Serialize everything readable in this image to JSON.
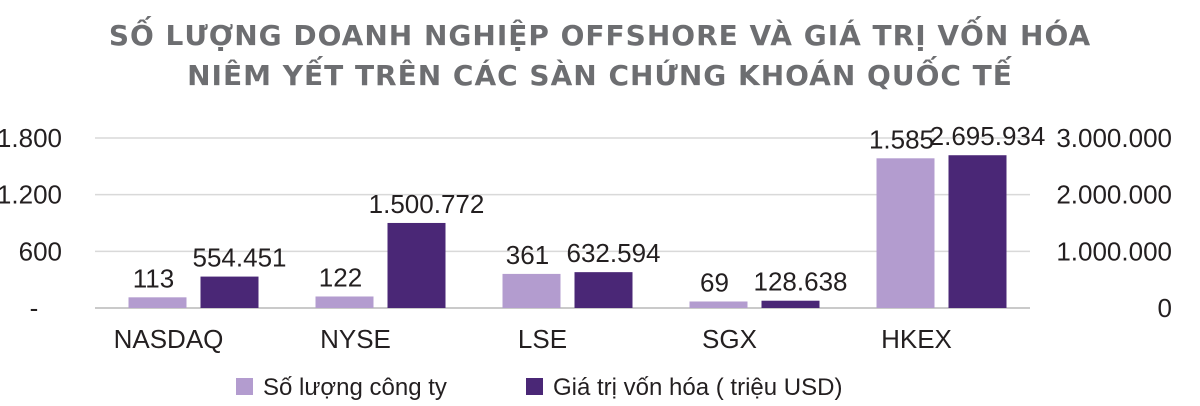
{
  "chart_data": {
    "type": "bar",
    "title": [
      "SỐ LƯỢNG DOANH NGHIỆP OFFSHORE VÀ GIÁ TRỊ VỐN HÓA",
      "NIÊM YẾT TRÊN CÁC SÀN CHỨNG KHOÁN QUỐC TẾ"
    ],
    "categories": [
      "NASDAQ",
      "NYSE",
      "LSE",
      "SGX",
      "HKEX"
    ],
    "series": [
      {
        "name": "Số lượng công ty",
        "axis": "left",
        "color": "#b39ccf",
        "values": [
          113,
          122,
          361,
          69,
          1585
        ],
        "labels": [
          "113",
          "122",
          "361",
          "69",
          "1.585"
        ]
      },
      {
        "name": "Giá trị vốn hóa ( triệu USD)",
        "axis": "right",
        "color": "#4a2776",
        "values": [
          554451,
          1500772,
          632594,
          128638,
          2695934
        ],
        "labels": [
          "554.451",
          "1.500.772",
          "632.594",
          "128.638",
          "2.695.934"
        ]
      }
    ],
    "left_axis": {
      "ylim": [
        0,
        1800
      ],
      "ticks": [
        0,
        600,
        1200,
        1800
      ],
      "tick_labels": [
        "-",
        "600",
        "1.200",
        "1.800"
      ]
    },
    "right_axis": {
      "ylim": [
        0,
        3000000
      ],
      "ticks": [
        0,
        1000000,
        2000000,
        3000000
      ],
      "tick_labels": [
        "0",
        "1.000.000",
        "2.000.000",
        "3.000.000"
      ]
    },
    "grid": true,
    "legend_position": "bottom"
  }
}
